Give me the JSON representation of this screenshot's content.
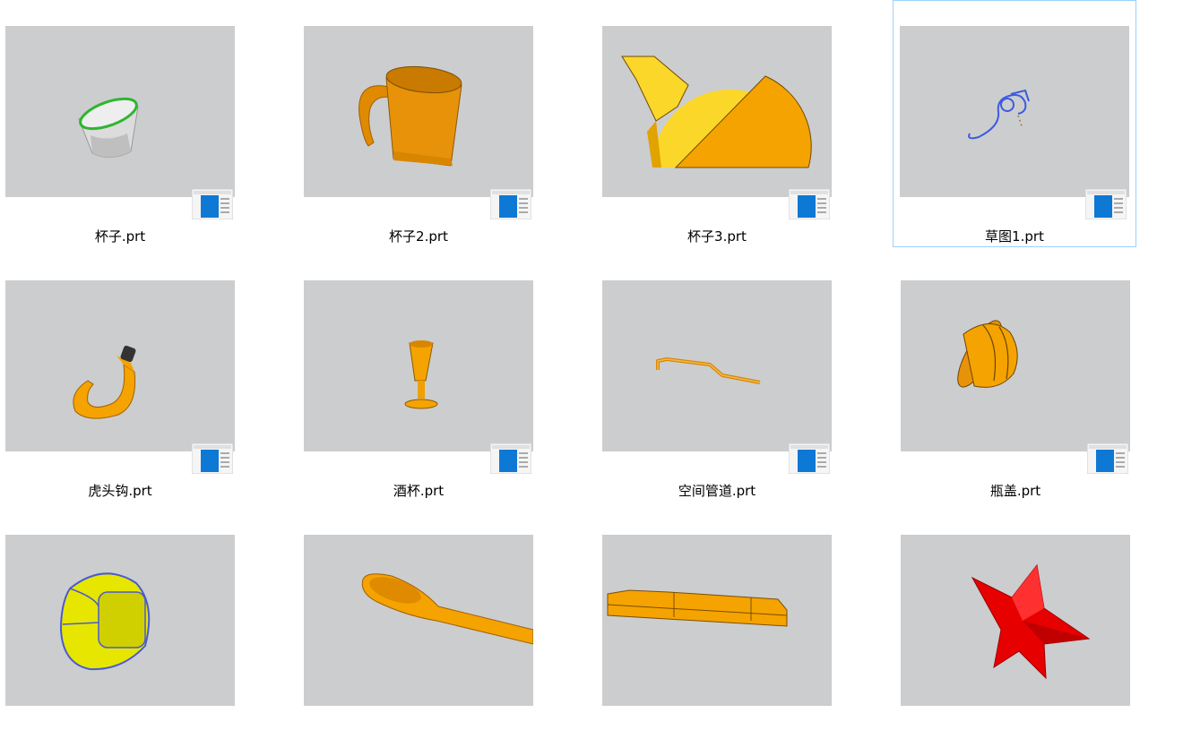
{
  "files": [
    {
      "name": "杯子.prt",
      "thumbnail": "white-cup-model",
      "selected": false
    },
    {
      "name": "杯子2.prt",
      "thumbnail": "orange-mug-model",
      "selected": false
    },
    {
      "name": "杯子3.prt",
      "thumbnail": "yellow-teapot-model",
      "selected": false
    },
    {
      "name": "草图1.prt",
      "thumbnail": "blue-sketch-curve",
      "selected": true
    },
    {
      "name": "虎头钩.prt",
      "thumbnail": "orange-hook-model",
      "selected": false
    },
    {
      "name": "酒杯.prt",
      "thumbnail": "orange-goblet-model",
      "selected": false
    },
    {
      "name": "空间管道.prt",
      "thumbnail": "orange-pipe-model",
      "selected": false
    },
    {
      "name": "瓶盖.prt",
      "thumbnail": "orange-bottle-cap-model",
      "selected": false
    },
    {
      "name": "",
      "thumbnail": "yellow-rounded-box-model",
      "selected": false
    },
    {
      "name": "",
      "thumbnail": "orange-spoon-model",
      "selected": false
    },
    {
      "name": "",
      "thumbnail": "orange-plate-model",
      "selected": false
    },
    {
      "name": "",
      "thumbnail": "red-star-model",
      "selected": false
    }
  ],
  "colors": {
    "thumb_bg": "#cccdcf",
    "selection_border": "#99d1ff",
    "accent": "#f5a300"
  }
}
